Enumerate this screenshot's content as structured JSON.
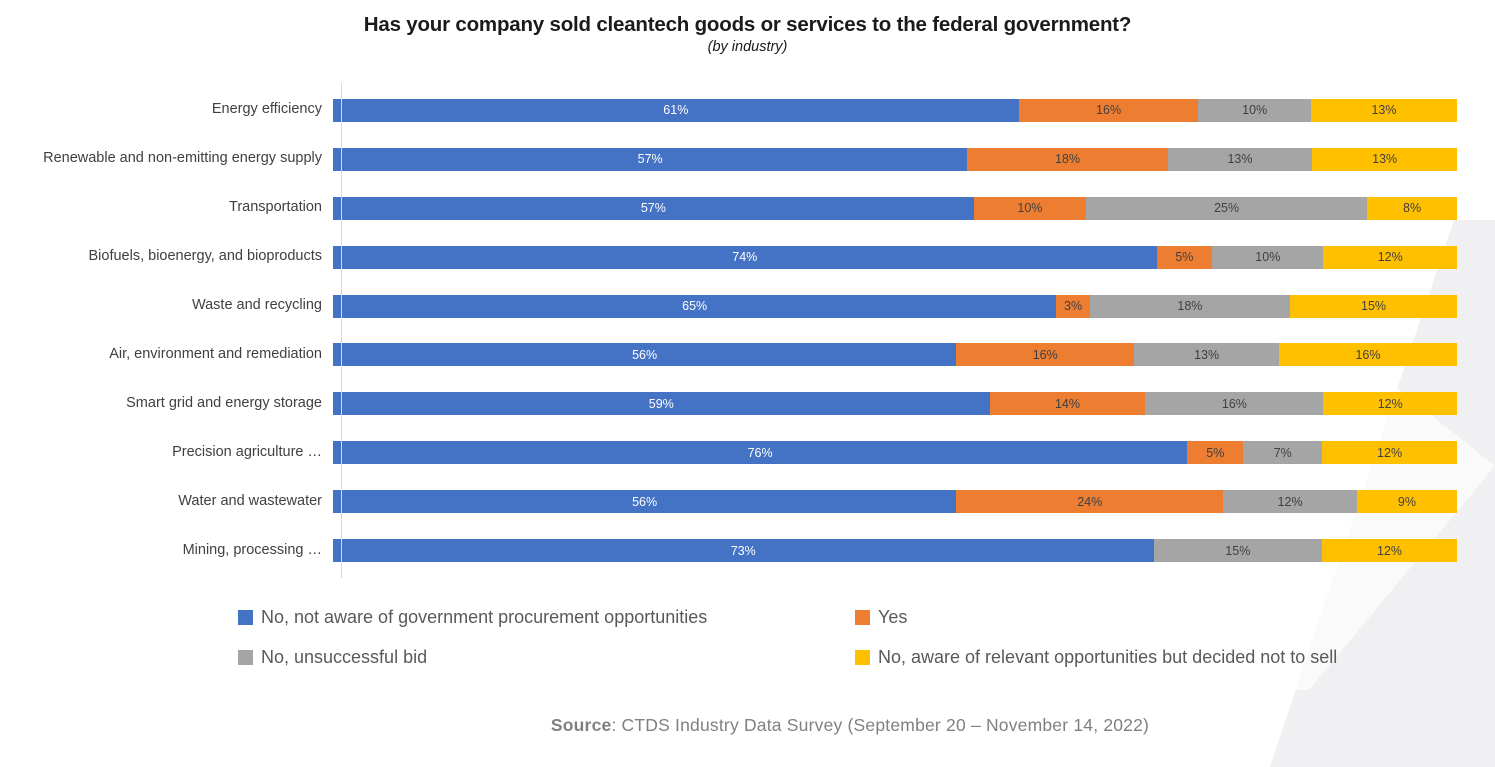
{
  "chart": {
    "title": "Has your company sold cleantech goods or services to the federal government?",
    "subtitle": "(by industry)"
  },
  "chart_data": {
    "type": "bar",
    "stacked": true,
    "orientation": "horizontal",
    "unit": "%",
    "xlim": [
      0,
      100
    ],
    "grid": false,
    "legend_position": "bottom",
    "value_labels": "percent-inside",
    "categories": [
      "Energy efficiency",
      "Renewable and non-emitting energy supply",
      "Transportation",
      "Biofuels, bioenergy, and bioproducts",
      "Waste and recycling",
      "Air, environment and remediation",
      "Smart grid and energy storage",
      "Precision agriculture …",
      "Water and wastewater",
      "Mining, processing …"
    ],
    "series": [
      {
        "name": "No, not aware of government procurement opportunities",
        "color": "#4472C4",
        "label_color": "#FFFFFF",
        "values": [
          61,
          57,
          57,
          74,
          65,
          56,
          59,
          76,
          56,
          73
        ]
      },
      {
        "name": "Yes",
        "color": "#ED7D31",
        "label_color": "#404040",
        "values": [
          16,
          18,
          10,
          5,
          3,
          16,
          14,
          5,
          24,
          0
        ]
      },
      {
        "name": "No, unsuccessful bid",
        "color": "#A5A5A5",
        "label_color": "#404040",
        "values": [
          10,
          13,
          25,
          10,
          18,
          13,
          16,
          7,
          12,
          15
        ]
      },
      {
        "name": "No, aware of relevant opportunities but decided not to sell",
        "color": "#FFC000",
        "label_color": "#404040",
        "values": [
          13,
          13,
          8,
          12,
          15,
          16,
          12,
          12,
          9,
          12
        ]
      }
    ]
  },
  "colors": {
    "axis_line": "#D9D9D9",
    "category_label": "#404040",
    "legend_text": "#595959",
    "source_text": "#808080"
  },
  "source": {
    "label": "Source",
    "text": ": CTDS Industry Data Survey (September 20 – November 14, 2022)"
  }
}
